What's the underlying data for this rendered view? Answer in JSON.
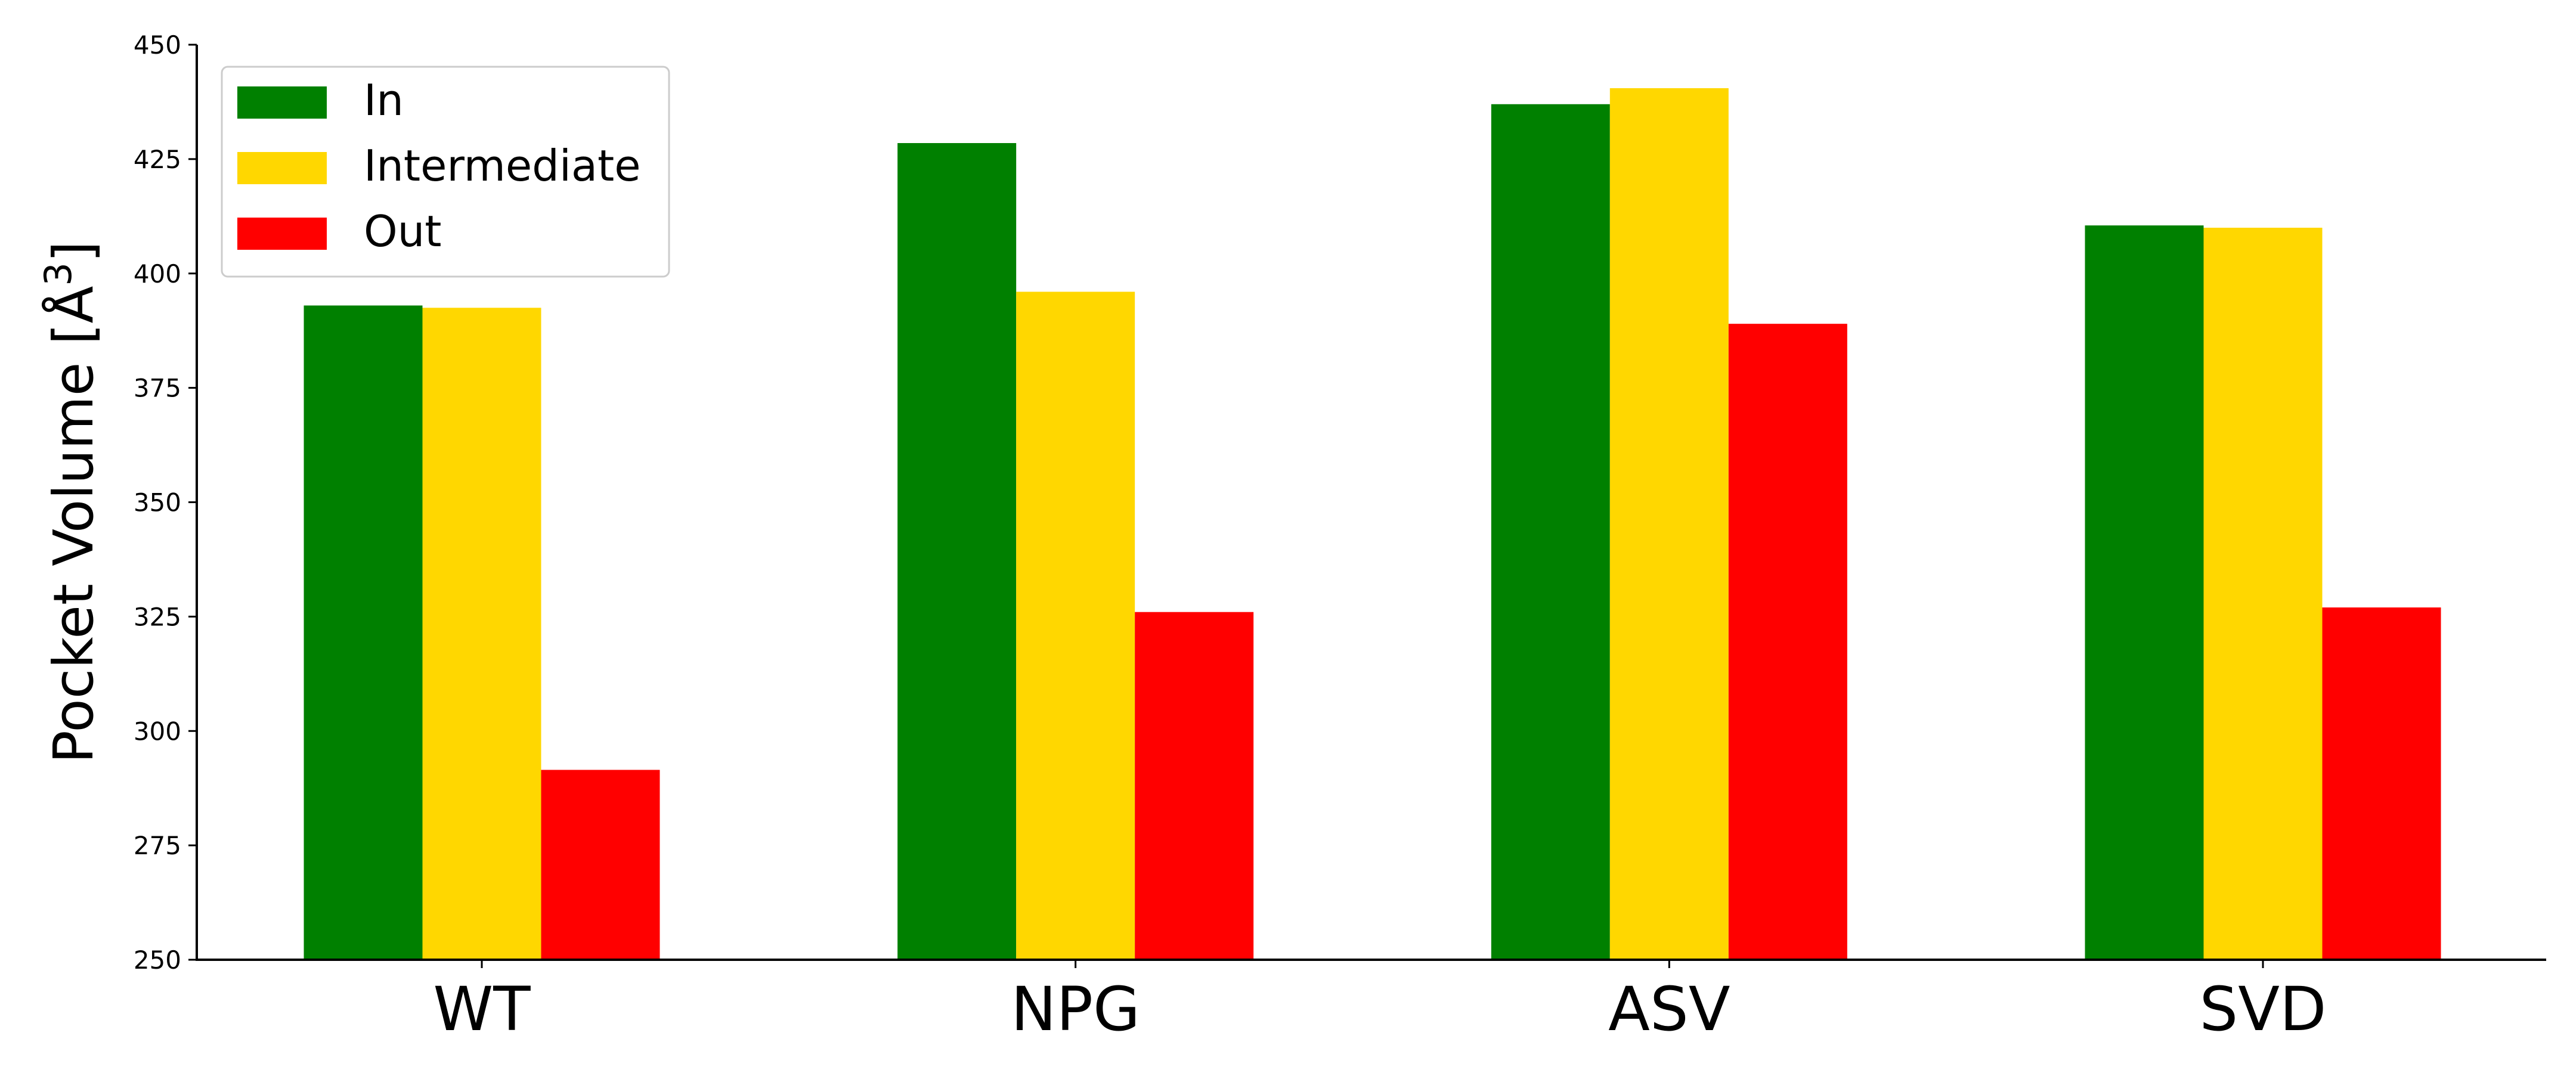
{
  "chart_data": {
    "type": "bar",
    "title": "",
    "xlabel": "",
    "ylabel": "Pocket Volume [Å³]",
    "ylabel_base": "Pocket Volume [Å",
    "ylabel_sup": "3",
    "ylabel_end": "]",
    "categories": [
      "WT",
      "NPG",
      "ASV",
      "SVD"
    ],
    "series": [
      {
        "name": "In",
        "color": "#008000",
        "values": [
          393,
          428.5,
          437,
          410.5
        ]
      },
      {
        "name": "Intermediate",
        "color": "#FFD700",
        "values": [
          392.5,
          396,
          440.5,
          410
        ]
      },
      {
        "name": "Out",
        "color": "#FF0000",
        "values": [
          291.5,
          326,
          389,
          327
        ]
      }
    ],
    "ylim": [
      250,
      450
    ],
    "yticks": [
      250,
      275,
      300,
      325,
      350,
      375,
      400,
      425,
      450
    ],
    "grid": false,
    "legend_position": "top-left"
  }
}
